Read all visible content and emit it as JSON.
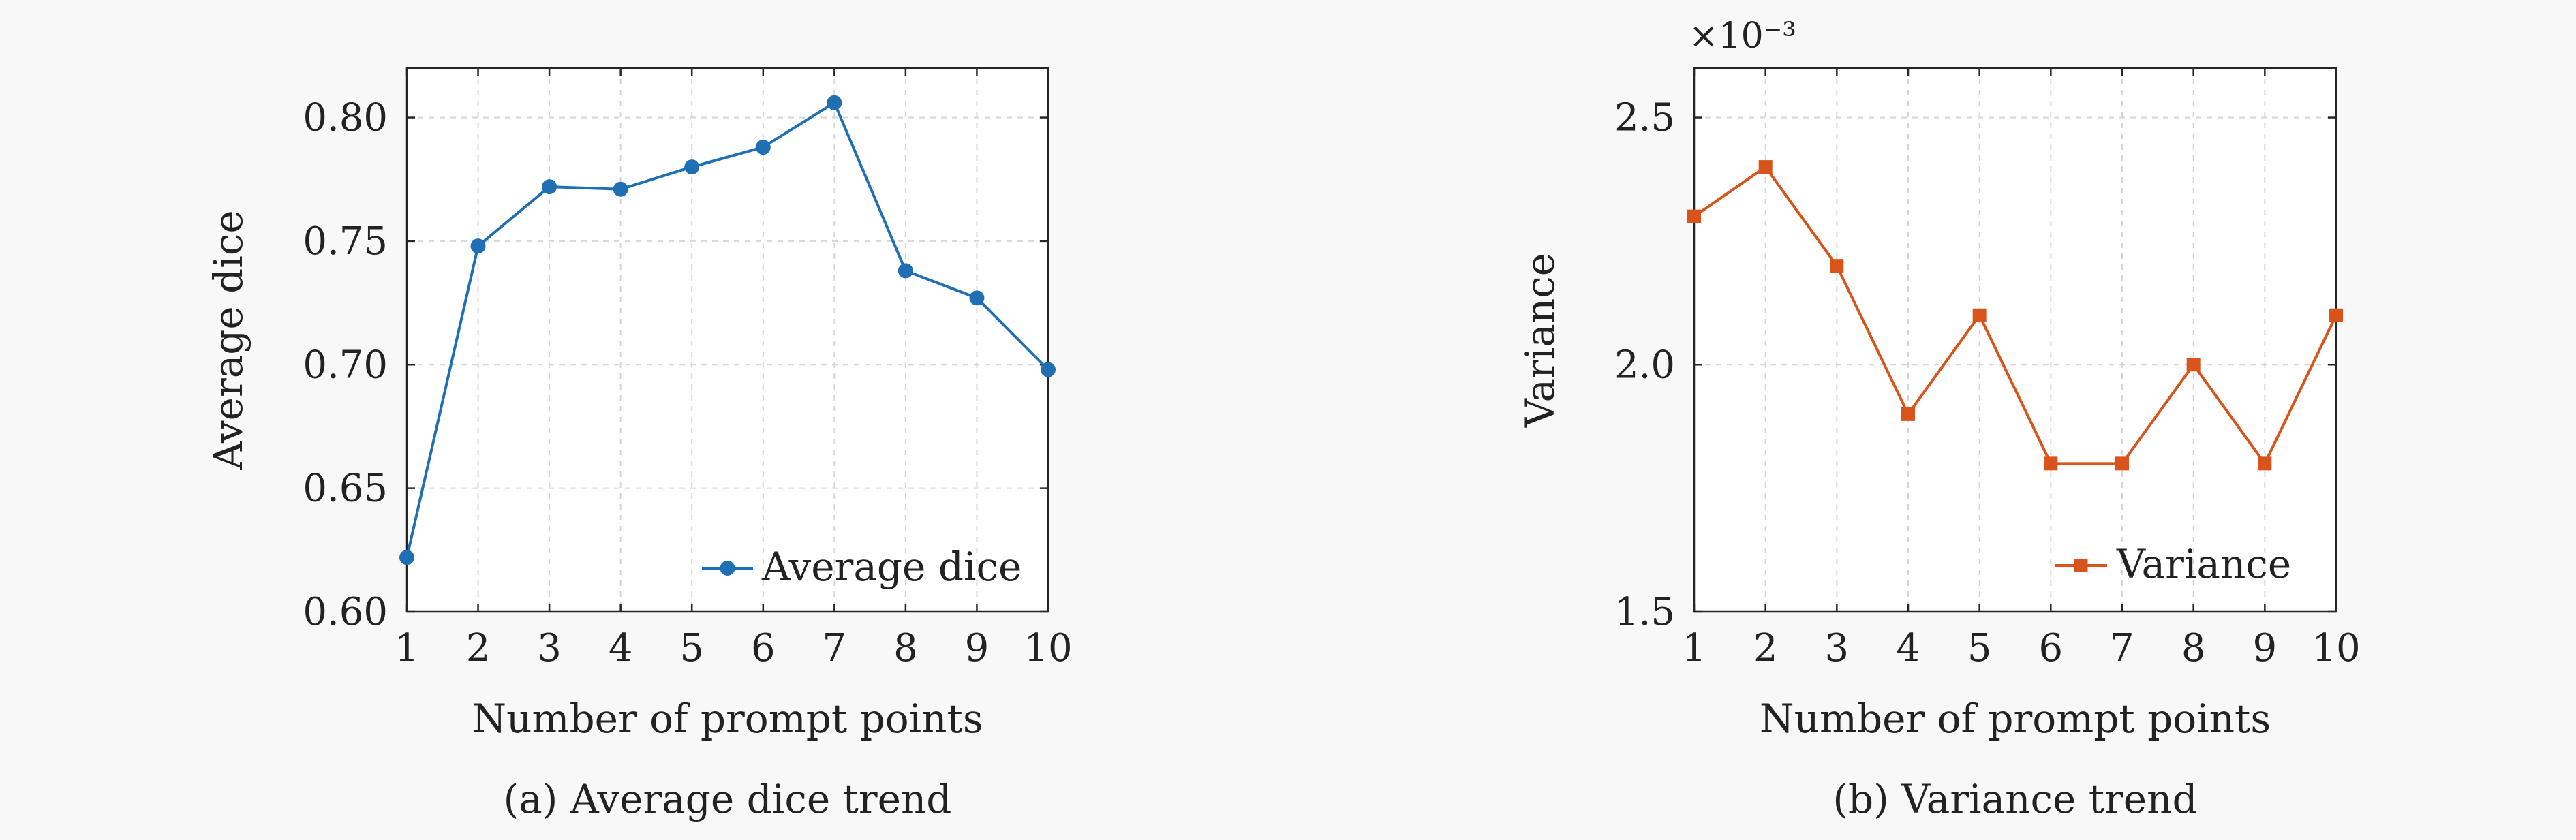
{
  "figure": {
    "background": "#f8f8f8"
  },
  "chart_data": [
    {
      "type": "line",
      "title": "",
      "caption": "(a) Average dice trend",
      "xlabel": "Number of prompt points",
      "ylabel": "Average dice",
      "x": [
        1,
        2,
        3,
        4,
        5,
        6,
        7,
        8,
        9,
        10
      ],
      "x_tick_labels": [
        "1",
        "2",
        "3",
        "4",
        "5",
        "6",
        "7",
        "8",
        "9",
        "10"
      ],
      "xlim": [
        1,
        10
      ],
      "ylim": [
        0.6,
        0.82
      ],
      "y_ticks": [
        0.6,
        0.65,
        0.7,
        0.75,
        0.8
      ],
      "y_tick_labels": [
        "0.60",
        "0.65",
        "0.70",
        "0.75",
        "0.80"
      ],
      "y_multiplier": "",
      "grid": true,
      "legend_position": "bottom-right",
      "series": [
        {
          "name": "Average dice",
          "color": "#1f6fb4",
          "marker": "circle",
          "values": [
            0.622,
            0.748,
            0.772,
            0.771,
            0.78,
            0.788,
            0.806,
            0.738,
            0.727,
            0.698
          ]
        }
      ]
    },
    {
      "type": "line",
      "title": "",
      "caption": "(b) Variance trend",
      "xlabel": "Number of prompt points",
      "ylabel": "Variance",
      "x": [
        1,
        2,
        3,
        4,
        5,
        6,
        7,
        8,
        9,
        10
      ],
      "x_tick_labels": [
        "1",
        "2",
        "3",
        "4",
        "5",
        "6",
        "7",
        "8",
        "9",
        "10"
      ],
      "xlim": [
        1,
        10
      ],
      "ylim": [
        1.5,
        2.6
      ],
      "y_ticks": [
        1.5,
        2.0,
        2.5
      ],
      "y_tick_labels": [
        "1.5",
        "2.0",
        "2.5"
      ],
      "y_multiplier": "×10⁻³",
      "grid": true,
      "legend_position": "bottom-right",
      "series": [
        {
          "name": "Variance",
          "color": "#d9541a",
          "marker": "square",
          "values": [
            2.3,
            2.4,
            2.2,
            1.9,
            2.1,
            1.8,
            1.8,
            2.0,
            1.8,
            2.1
          ]
        }
      ]
    }
  ]
}
